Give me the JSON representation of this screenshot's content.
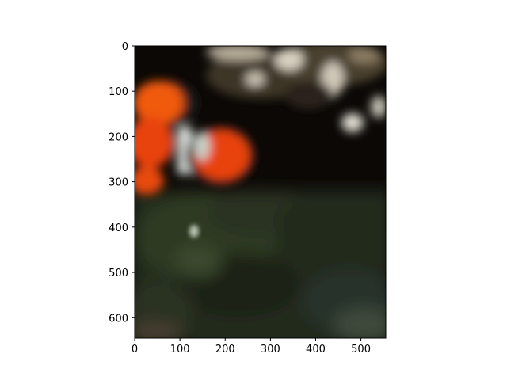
{
  "image": {
    "subject": "blurry-underwater-photo-clownfish-near-anemone",
    "colors": {
      "background": "#0b0805",
      "fish_orange": "#e8430c",
      "fish_white": "#d9e0dc",
      "coral_green": "#2a3520",
      "rock_tan": "#7a6a4f"
    }
  },
  "axes": {
    "x_ticks": [
      "0",
      "100",
      "200",
      "300",
      "400",
      "500"
    ],
    "y_ticks": [
      "0",
      "100",
      "200",
      "300",
      "400",
      "500",
      "600"
    ],
    "x_range": [
      0,
      555
    ],
    "y_range": [
      0,
      645
    ]
  }
}
